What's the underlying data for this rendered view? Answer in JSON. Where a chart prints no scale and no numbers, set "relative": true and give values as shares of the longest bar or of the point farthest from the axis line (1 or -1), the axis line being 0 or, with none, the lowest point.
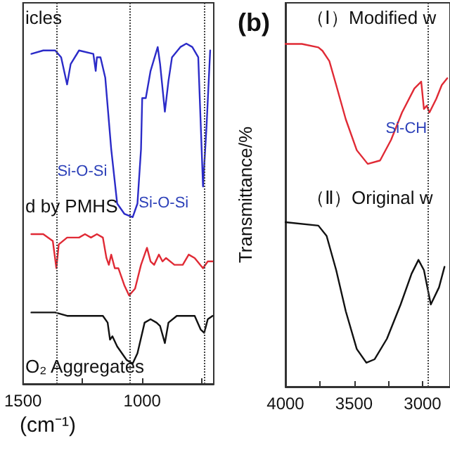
{
  "chart_data": [
    {
      "type": "line",
      "relative": true,
      "xlabel": "(cm⁻¹)",
      "xlim": [
        1500,
        700
      ],
      "xticks": [
        1500,
        {
          "value": 1250,
          "label": null
        },
        1000,
        {
          "value": 750,
          "label": null
        }
      ],
      "grid": false,
      "legend": false,
      "marker": "none",
      "line_style": "solid",
      "series": [
        {
          "name": "icles",
          "color": "#2b2bc8",
          "x": [
            1465,
            1415,
            1365,
            1340,
            1315,
            1300,
            1265,
            1205,
            1195,
            1190,
            1175,
            1155,
            1130,
            1105,
            1075,
            1040,
            1020,
            1005,
            1000,
            985,
            965,
            935,
            925,
            905,
            890,
            875,
            840,
            815,
            790,
            765,
            745,
            730,
            715
          ],
          "values": [
            0.97,
            0.98,
            0.98,
            0.96,
            0.88,
            0.94,
            0.98,
            0.97,
            0.92,
            0.96,
            0.96,
            0.9,
            0.69,
            0.53,
            0.5,
            0.49,
            0.53,
            0.69,
            0.84,
            0.84,
            0.92,
            0.99,
            0.94,
            0.8,
            0.89,
            0.96,
            0.99,
            1.0,
            0.99,
            0.96,
            0.58,
            0.76,
            0.98
          ]
        },
        {
          "name": "d by PMHS",
          "color": "#e02a35",
          "x": [
            1465,
            1415,
            1375,
            1360,
            1350,
            1315,
            1265,
            1240,
            1215,
            1190,
            1165,
            1150,
            1140,
            1130,
            1115,
            1100,
            1075,
            1055,
            1030,
            1005,
            980,
            965,
            950,
            930,
            915,
            900,
            865,
            830,
            805,
            780,
            745,
            725,
            705
          ],
          "values": [
            0.44,
            0.44,
            0.42,
            0.34,
            0.41,
            0.43,
            0.43,
            0.44,
            0.43,
            0.44,
            0.43,
            0.37,
            0.35,
            0.38,
            0.34,
            0.34,
            0.29,
            0.26,
            0.28,
            0.35,
            0.4,
            0.36,
            0.35,
            0.38,
            0.36,
            0.37,
            0.35,
            0.35,
            0.38,
            0.37,
            0.34,
            0.36,
            0.36
          ]
        },
        {
          "name": "O₂ Aggregates",
          "color": "#111111",
          "x": [
            1465,
            1365,
            1315,
            1290,
            1165,
            1145,
            1135,
            1125,
            1105,
            1065,
            1040,
            1020,
            990,
            965,
            940,
            925,
            905,
            890,
            855,
            780,
            755,
            740,
            725,
            705
          ],
          "values": [
            0.21,
            0.21,
            0.2,
            0.2,
            0.2,
            0.18,
            0.13,
            0.14,
            0.11,
            0.07,
            0.06,
            0.09,
            0.18,
            0.19,
            0.18,
            0.17,
            0.12,
            0.18,
            0.2,
            0.2,
            0.16,
            0.15,
            0.19,
            0.2
          ]
        }
      ],
      "ref_lines": [
        {
          "axis": "x",
          "value": 1360,
          "color": "#444444",
          "line_style": "dotted"
        },
        {
          "axis": "x",
          "value": 1055,
          "color": "#444444",
          "line_style": "dotted"
        },
        {
          "axis": "x",
          "value": 740,
          "color": "#444444",
          "line_style": "dotted"
        }
      ],
      "annotations": [
        {
          "text": "Si-O-Si",
          "x": 1075,
          "y": 0.5
        },
        {
          "text": "Si-O-Si",
          "x": 745,
          "y": 0.58
        }
      ]
    },
    {
      "type": "line",
      "relative": true,
      "title": "(b)",
      "xlabel": null,
      "ylabel": "Transmittance/%",
      "xlim": [
        4000,
        2800
      ],
      "xticks": [
        4000,
        {
          "value": 3750,
          "label": null
        },
        3500,
        {
          "value": 3250,
          "label": null
        },
        3000
      ],
      "grid": false,
      "legend": false,
      "marker": "none",
      "line_style": "solid",
      "series": [
        {
          "name": "（Ⅰ）Modified w",
          "color": "#e02a35",
          "x": [
            4000,
            3880,
            3760,
            3730,
            3680,
            3630,
            3560,
            3480,
            3400,
            3310,
            3230,
            3150,
            3060,
            3010,
            2990,
            2970,
            2950,
            2900,
            2860,
            2820
          ],
          "values": [
            1.0,
            1.0,
            0.99,
            0.98,
            0.95,
            0.88,
            0.78,
            0.69,
            0.65,
            0.66,
            0.72,
            0.8,
            0.87,
            0.89,
            0.81,
            0.82,
            0.8,
            0.84,
            0.88,
            0.9
          ]
        },
        {
          "name": "（Ⅱ）Original w",
          "color": "#111111",
          "x": [
            4000,
            3760,
            3700,
            3630,
            3560,
            3480,
            3410,
            3350,
            3260,
            3160,
            3080,
            3030,
            2990,
            2940,
            2880,
            2840
          ],
          "values": [
            0.48,
            0.47,
            0.44,
            0.34,
            0.22,
            0.11,
            0.07,
            0.08,
            0.14,
            0.24,
            0.33,
            0.37,
            0.34,
            0.24,
            0.29,
            0.35
          ]
        }
      ],
      "ref_lines": [
        {
          "axis": "x",
          "value": 2965,
          "color": "#444444",
          "line_style": "dotted"
        }
      ],
      "annotations": [
        {
          "text": "Si-CH",
          "x": 2975,
          "y": 0.81
        }
      ]
    }
  ]
}
